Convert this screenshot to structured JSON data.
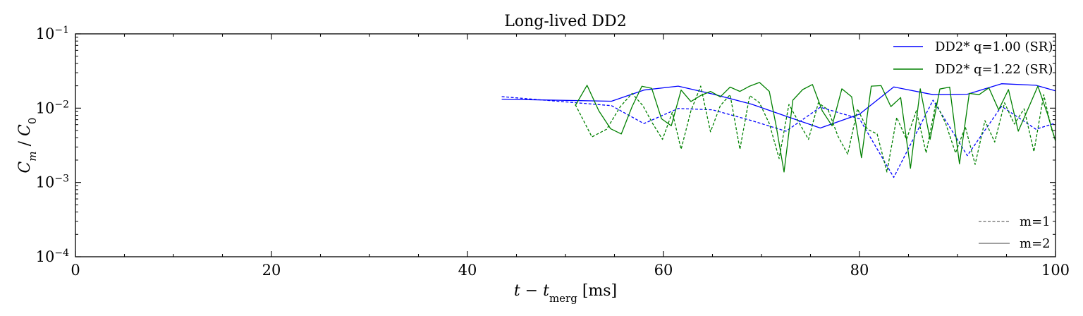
{
  "chart_data": {
    "type": "line",
    "title": "Long-lived DD2",
    "xlabel": "t − t_merg [ms]",
    "ylabel": "C_m / C_0",
    "xlim": [
      0,
      100
    ],
    "ylim": [
      0.0001,
      0.1
    ],
    "yscale": "log",
    "x_ticks": [
      0,
      20,
      40,
      60,
      80,
      100
    ],
    "x_tick_labels": [
      "0",
      "20",
      "40",
      "60",
      "80",
      "100"
    ],
    "y_ticks": [
      0.0001,
      0.001,
      0.01,
      0.1
    ],
    "y_tick_labels": [
      {
        "base": "10",
        "exp": "−4"
      },
      {
        "base": "10",
        "exp": "−3"
      },
      {
        "base": "10",
        "exp": "−2"
      },
      {
        "base": "10",
        "exp": "−1"
      }
    ],
    "grid": false,
    "legend_models": [
      {
        "label": "DD2* q=1.00 (SR)",
        "color": "#0000ff"
      },
      {
        "label": "DD2* q=1.22 (SR)",
        "color": "#008000"
      }
    ],
    "legend_models_position": "top-right",
    "legend_modes": [
      {
        "label": "m=1",
        "dash": true
      },
      {
        "label": "m=2",
        "dash": false
      }
    ],
    "legend_modes_position": "bottom-right",
    "series": [
      {
        "model": "DD2* q=1.00 (SR)",
        "mode": "m=2",
        "color": "#0000ff",
        "dashed": false,
        "x": [
          43.5,
          54.7,
          58.0,
          61.5,
          65.0,
          69.0,
          72.5,
          76.0,
          80.0,
          83.5,
          87.5,
          91.0,
          94.5,
          98.0,
          100.0
        ],
        "y": [
          0.0132,
          0.0124,
          0.0175,
          0.0198,
          0.0155,
          0.0113,
          0.0078,
          0.0054,
          0.0083,
          0.0193,
          0.0152,
          0.0154,
          0.0213,
          0.0203,
          0.0171
        ]
      },
      {
        "model": "DD2* q=1.00 (SR)",
        "mode": "m=1",
        "color": "#0000ff",
        "dashed": true,
        "x": [
          43.5,
          54.7,
          58.0,
          61.5,
          65.0,
          69.0,
          72.5,
          76.0,
          80.0,
          83.5,
          87.5,
          91.0,
          94.5,
          98.0,
          100.0
        ],
        "y": [
          0.0143,
          0.0108,
          0.0062,
          0.0099,
          0.0095,
          0.0068,
          0.0049,
          0.0103,
          0.0072,
          0.00117,
          0.0128,
          0.0023,
          0.0106,
          0.0052,
          0.0063
        ]
      },
      {
        "model": "DD2* q=1.22 (SR)",
        "mode": "m=2",
        "color": "#008000",
        "dashed": false,
        "x": [
          51.0,
          52.2,
          53.4,
          54.6,
          55.7,
          56.8,
          57.8,
          58.8,
          59.8,
          60.8,
          61.8,
          62.8,
          63.8,
          64.8,
          65.8,
          66.8,
          67.8,
          68.8,
          69.8,
          70.8,
          71.5,
          72.3,
          73.2,
          74.2,
          75.2,
          76.2,
          77.2,
          78.2,
          79.2,
          80.2,
          81.2,
          82.2,
          83.2,
          84.2,
          85.2,
          86.2,
          87.2,
          88.2,
          89.2,
          90.2,
          91.2,
          92.2,
          93.2,
          94.2,
          95.2,
          96.2,
          97.2,
          98.2,
          99.2,
          100.0
        ],
        "y": [
          0.0108,
          0.0203,
          0.0092,
          0.0053,
          0.0045,
          0.0105,
          0.0197,
          0.0185,
          0.0072,
          0.0058,
          0.0175,
          0.0123,
          0.0148,
          0.0168,
          0.0142,
          0.0192,
          0.0168,
          0.0198,
          0.0222,
          0.0168,
          0.0058,
          0.00138,
          0.0128,
          0.0178,
          0.0208,
          0.0092,
          0.0058,
          0.0182,
          0.0142,
          0.00215,
          0.0198,
          0.0201,
          0.0105,
          0.0139,
          0.00155,
          0.0182,
          0.0038,
          0.0181,
          0.0192,
          0.00178,
          0.0158,
          0.0152,
          0.0188,
          0.0095,
          0.0178,
          0.0049,
          0.0098,
          0.0198,
          0.0082,
          0.0036
        ]
      },
      {
        "model": "DD2* q=1.22 (SR)",
        "mode": "m=1",
        "color": "#008000",
        "dashed": true,
        "x": [
          51.0,
          52.7,
          54.2,
          55.6,
          56.8,
          57.9,
          58.9,
          59.9,
          60.9,
          61.8,
          62.8,
          63.8,
          64.8,
          65.8,
          66.8,
          67.8,
          68.8,
          69.8,
          70.8,
          71.8,
          72.8,
          73.8,
          74.8,
          75.8,
          76.8,
          77.8,
          78.8,
          79.8,
          80.8,
          81.8,
          82.8,
          83.8,
          84.8,
          85.8,
          86.8,
          87.8,
          88.8,
          89.8,
          90.8,
          91.8,
          92.8,
          93.8,
          94.8,
          95.8,
          96.8,
          97.8,
          98.8,
          99.6,
          100.0
        ],
        "y": [
          0.0112,
          0.0041,
          0.0052,
          0.0105,
          0.0158,
          0.0108,
          0.0062,
          0.0038,
          0.0088,
          0.0028,
          0.0092,
          0.0198,
          0.0048,
          0.0108,
          0.0152,
          0.0028,
          0.0148,
          0.0118,
          0.0062,
          0.0021,
          0.0112,
          0.0065,
          0.0038,
          0.0118,
          0.0095,
          0.0042,
          0.0024,
          0.0098,
          0.0052,
          0.0045,
          0.00138,
          0.0075,
          0.0038,
          0.0092,
          0.0025,
          0.0118,
          0.0062,
          0.0025,
          0.0056,
          0.00175,
          0.0068,
          0.0035,
          0.0118,
          0.0061,
          0.0098,
          0.0026,
          0.0152,
          0.0052,
          0.0038
        ]
      }
    ]
  }
}
